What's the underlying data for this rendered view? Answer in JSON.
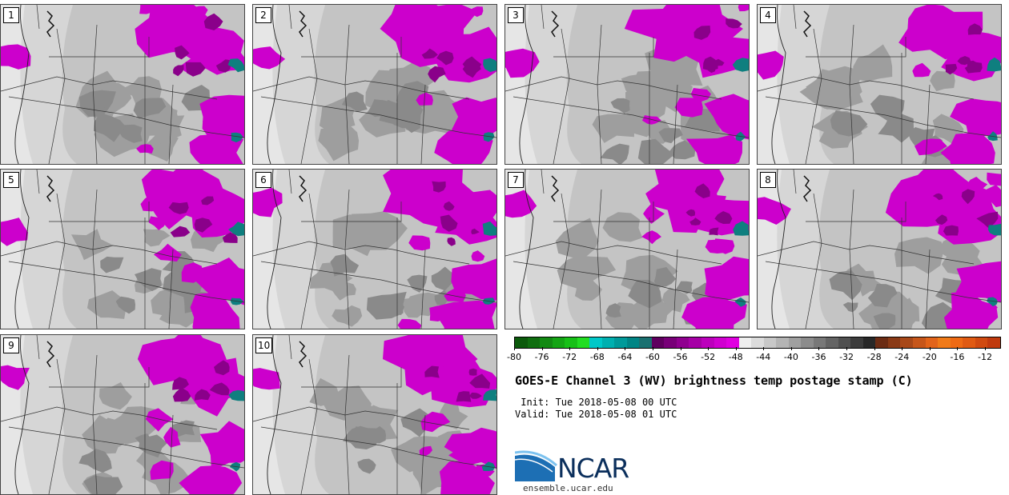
{
  "panels": [
    {
      "label": "1"
    },
    {
      "label": "2"
    },
    {
      "label": "3"
    },
    {
      "label": "4"
    },
    {
      "label": "5"
    },
    {
      "label": "6"
    },
    {
      "label": "7"
    },
    {
      "label": "8"
    },
    {
      "label": "9"
    },
    {
      "label": "10"
    }
  ],
  "colorbar": {
    "ticks": [
      "-80",
      "-76",
      "-72",
      "-68",
      "-64",
      "-60",
      "-56",
      "-52",
      "-48",
      "-44",
      "-40",
      "-36",
      "-32",
      "-28",
      "-24",
      "-20",
      "-16",
      "-12"
    ],
    "colors": [
      "#0b5a0b",
      "#0f6e0f",
      "#128a12",
      "#14a514",
      "#17c017",
      "#22dd22",
      "#00c8c8",
      "#00b0b0",
      "#009a9a",
      "#008585",
      "#1a7070",
      "#5f005f",
      "#780078",
      "#8f008f",
      "#a600a6",
      "#bc00bc",
      "#d000d0",
      "#e000e0",
      "#efefef",
      "#dcdcdc",
      "#c8c8c8",
      "#b4b4b4",
      "#a0a0a0",
      "#8c8c8c",
      "#787878",
      "#646464",
      "#505050",
      "#3c3c3c",
      "#282828",
      "#6b2c14",
      "#8a3a16",
      "#a84818",
      "#c6561a",
      "#e2641a",
      "#f07a18",
      "#ee6a14",
      "#e05a12",
      "#d04a10",
      "#c03a0e"
    ]
  },
  "title": "GOES-E Channel 3 (WV) brightness temp postage stamp (C)",
  "init_text": " Init: Tue 2018-05-08 00 UTC",
  "valid_text": "Valid: Tue 2018-05-08 01 UTC",
  "logo_text": "NCAR",
  "site_text": "ensemble.ucar.edu",
  "palette": {
    "magenta": "#cc00cc",
    "dark_magenta": "#8a008a",
    "teal": "#0f7f7f"
  }
}
